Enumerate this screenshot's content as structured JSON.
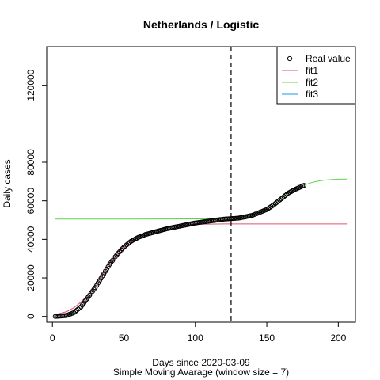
{
  "chart_data": {
    "type": "line",
    "title": "Netherlands / Logistic",
    "xlabel": "Days since 2020-03-09",
    "xlabel_sub": "Simple Moving Avarage (window size = 7)",
    "ylabel": "Daily cases",
    "xlim": [
      -4,
      212
    ],
    "ylim": [
      -3000,
      140000
    ],
    "x_ticks": [
      0,
      50,
      100,
      150,
      200
    ],
    "y_ticks": [
      0,
      20000,
      40000,
      60000,
      80000,
      120000
    ],
    "grid": false,
    "legend_position": "top-right",
    "vline": {
      "x": 125,
      "style": "dashed",
      "color": "#000000"
    },
    "series": [
      {
        "name": "Real value",
        "style": "points",
        "color": "#000000",
        "x_start": 2,
        "x_end": 176,
        "x_step": 1,
        "knots_x": [
          2,
          10,
          15,
          20,
          25,
          30,
          35,
          40,
          45,
          50,
          55,
          60,
          65,
          70,
          80,
          90,
          100,
          110,
          120,
          130,
          135,
          140,
          145,
          150,
          155,
          160,
          165,
          170,
          176
        ],
        "knots_y": [
          0,
          500,
          2000,
          5000,
          10000,
          15000,
          21000,
          27000,
          32000,
          36000,
          39000,
          41000,
          42500,
          43500,
          45500,
          47000,
          48500,
          49500,
          50500,
          51000,
          51700,
          52500,
          54000,
          55500,
          58000,
          61000,
          64000,
          66000,
          68000
        ]
      },
      {
        "name": "fit1",
        "style": "line",
        "color": "#DF536B",
        "x": [
          2,
          10,
          15,
          20,
          25,
          30,
          35,
          40,
          45,
          50,
          55,
          60,
          65,
          70,
          80,
          90,
          100,
          120,
          150,
          180,
          206
        ],
        "y": [
          1000,
          2500,
          4500,
          7500,
          11500,
          16500,
          22000,
          27500,
          32000,
          36000,
          39000,
          41500,
          43200,
          44500,
          46200,
          47200,
          47800,
          48000,
          48000,
          48000,
          48000
        ]
      },
      {
        "name": "fit2",
        "style": "line",
        "color": "#61D04F",
        "x": [
          2,
          50,
          100,
          120,
          130,
          135,
          140,
          145,
          150,
          155,
          160,
          165,
          170,
          175,
          180,
          185,
          190,
          195,
          200,
          206
        ],
        "y": [
          50500,
          50500,
          50600,
          50800,
          51200,
          51700,
          52500,
          54000,
          55500,
          58000,
          61000,
          64000,
          66000,
          67800,
          69200,
          70100,
          70700,
          71000,
          71200,
          71300
        ]
      },
      {
        "name": "fit3",
        "style": "line",
        "color": "#2297E6",
        "x": [],
        "y": []
      }
    ]
  }
}
